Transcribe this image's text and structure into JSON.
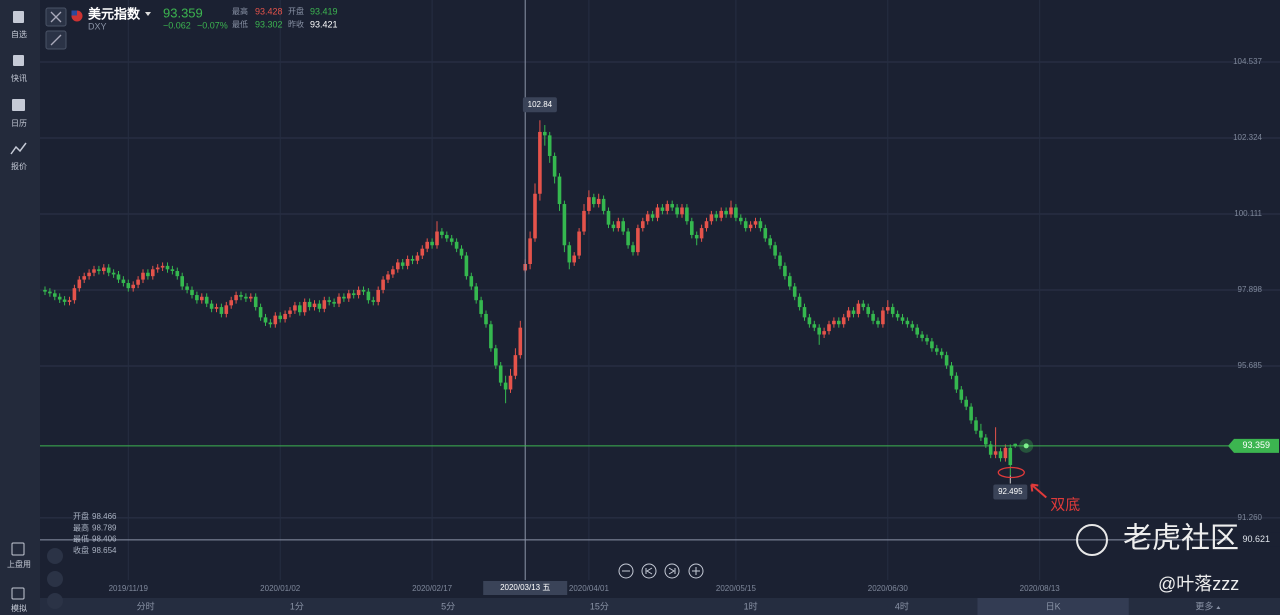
{
  "sidebar": {
    "items": [
      "自选",
      "快讯",
      "日历",
      "报价"
    ],
    "bottom": [
      "上盘用",
      "模拟"
    ]
  },
  "header": {
    "name": "美元指数",
    "code": "DXY",
    "price": "93.359",
    "change": "−0.062",
    "change_pct": "−0.07%",
    "stats": [
      {
        "label": "最高",
        "value": "93.428"
      },
      {
        "label": "开盘",
        "value": "93.419"
      },
      {
        "label": "最低",
        "value": "93.302"
      },
      {
        "label": "昨收",
        "value": "93.421"
      }
    ]
  },
  "chart_data": {
    "type": "candlestick",
    "up_color": "#e5534b",
    "down_color": "#35b84f",
    "grid": true,
    "xlim": [
      -1.02,
      252.04
    ],
    "ylim": [
      89.452,
      106.342
    ],
    "yticks": [
      104.537,
      102.324,
      100.111,
      97.898,
      95.685,
      {
        "value": 91.26,
        "label": "91.260"
      }
    ],
    "xticks": [
      {
        "value": 17,
        "label": "2019/11/19"
      },
      {
        "value": 48,
        "label": "2020/01/02"
      },
      {
        "value": 79,
        "label": "2020/02/17"
      },
      {
        "value": 111,
        "label": "2020/04/01"
      },
      {
        "value": 141,
        "label": "2020/05/15"
      },
      {
        "value": 172,
        "label": "2020/06/30"
      },
      {
        "value": 203,
        "label": "2020/08/13"
      }
    ],
    "last_price": 93.359,
    "last_color": "#3cb550",
    "crosshair": {
      "x": {
        "value": 98,
        "label": "2020/03/13 五"
      },
      "y": 90.621
    },
    "ohlc_box": [
      {
        "label": "开盘",
        "value": 98.466
      },
      {
        "label": "最高",
        "value": 98.789
      },
      {
        "label": "最低",
        "value": 98.406
      },
      {
        "label": "收盘",
        "value": 98.654
      }
    ],
    "max_label": {
      "index": 101,
      "value": 102.84
    },
    "min_label": {
      "index": 197,
      "value": 92.495
    },
    "annotation": "双底",
    "candles": [
      [
        97.9,
        98.0,
        97.75,
        97.85
      ],
      [
        97.85,
        97.95,
        97.7,
        97.8
      ],
      [
        97.8,
        97.9,
        97.6,
        97.7
      ],
      [
        97.7,
        97.8,
        97.52,
        97.62
      ],
      [
        97.62,
        97.72,
        97.45,
        97.55
      ],
      [
        97.55,
        97.7,
        97.45,
        97.6
      ],
      [
        97.6,
        98.05,
        97.5,
        97.95
      ],
      [
        97.95,
        98.3,
        97.85,
        98.2
      ],
      [
        98.2,
        98.4,
        98.1,
        98.3
      ],
      [
        98.3,
        98.5,
        98.2,
        98.4
      ],
      [
        98.4,
        98.6,
        98.3,
        98.5
      ],
      [
        98.5,
        98.6,
        98.35,
        98.45
      ],
      [
        98.45,
        98.65,
        98.35,
        98.55
      ],
      [
        98.55,
        98.65,
        98.3,
        98.4
      ],
      [
        98.4,
        98.5,
        98.25,
        98.35
      ],
      [
        98.35,
        98.45,
        98.1,
        98.2
      ],
      [
        98.2,
        98.3,
        98.0,
        98.1
      ],
      [
        98.1,
        98.2,
        97.85,
        97.95
      ],
      [
        97.95,
        98.15,
        97.85,
        98.05
      ],
      [
        98.05,
        98.3,
        97.95,
        98.2
      ],
      [
        98.2,
        98.5,
        98.1,
        98.4
      ],
      [
        98.4,
        98.5,
        98.2,
        98.3
      ],
      [
        98.3,
        98.6,
        98.2,
        98.5
      ],
      [
        98.5,
        98.65,
        98.4,
        98.55
      ],
      [
        98.55,
        98.7,
        98.45,
        98.6
      ],
      [
        98.6,
        98.7,
        98.4,
        98.5
      ],
      [
        98.5,
        98.6,
        98.35,
        98.45
      ],
      [
        98.45,
        98.55,
        98.2,
        98.3
      ],
      [
        98.3,
        98.4,
        97.9,
        98.0
      ],
      [
        98.0,
        98.1,
        97.8,
        97.9
      ],
      [
        97.9,
        98.0,
        97.65,
        97.75
      ],
      [
        97.75,
        97.85,
        97.5,
        97.6
      ],
      [
        97.6,
        97.8,
        97.5,
        97.7
      ],
      [
        97.7,
        97.8,
        97.4,
        97.5
      ],
      [
        97.5,
        97.6,
        97.25,
        97.35
      ],
      [
        97.35,
        97.5,
        97.25,
        97.4
      ],
      [
        97.4,
        97.5,
        97.1,
        97.2
      ],
      [
        97.2,
        97.55,
        97.1,
        97.45
      ],
      [
        97.45,
        97.7,
        97.35,
        97.6
      ],
      [
        97.6,
        97.85,
        97.5,
        97.75
      ],
      [
        97.75,
        97.85,
        97.6,
        97.7
      ],
      [
        97.7,
        97.8,
        97.55,
        97.65
      ],
      [
        97.65,
        97.8,
        97.55,
        97.7
      ],
      [
        97.7,
        97.8,
        97.3,
        97.4
      ],
      [
        97.4,
        97.5,
        97.0,
        97.1
      ],
      [
        97.1,
        97.2,
        96.85,
        96.95
      ],
      [
        96.95,
        97.05,
        96.8,
        96.9
      ],
      [
        96.9,
        97.25,
        96.8,
        97.15
      ],
      [
        97.15,
        97.25,
        96.95,
        97.05
      ],
      [
        97.05,
        97.3,
        96.95,
        97.2
      ],
      [
        97.2,
        97.4,
        97.1,
        97.3
      ],
      [
        97.3,
        97.55,
        97.2,
        97.45
      ],
      [
        97.45,
        97.55,
        97.15,
        97.25
      ],
      [
        97.25,
        97.65,
        97.15,
        97.55
      ],
      [
        97.55,
        97.65,
        97.3,
        97.4
      ],
      [
        97.4,
        97.6,
        97.3,
        97.5
      ],
      [
        97.5,
        97.6,
        97.25,
        97.35
      ],
      [
        97.35,
        97.7,
        97.25,
        97.6
      ],
      [
        97.6,
        97.7,
        97.45,
        97.55
      ],
      [
        97.55,
        97.65,
        97.4,
        97.5
      ],
      [
        97.5,
        97.8,
        97.4,
        97.7
      ],
      [
        97.7,
        97.8,
        97.55,
        97.65
      ],
      [
        97.65,
        97.9,
        97.55,
        97.8
      ],
      [
        97.8,
        97.9,
        97.65,
        97.75
      ],
      [
        97.75,
        98.0,
        97.65,
        97.9
      ],
      [
        97.9,
        98.0,
        97.75,
        97.85
      ],
      [
        97.85,
        97.95,
        97.5,
        97.6
      ],
      [
        97.6,
        97.7,
        97.45,
        97.55
      ],
      [
        97.55,
        98.0,
        97.45,
        97.9
      ],
      [
        97.9,
        98.3,
        97.8,
        98.2
      ],
      [
        98.2,
        98.45,
        98.1,
        98.35
      ],
      [
        98.35,
        98.6,
        98.25,
        98.5
      ],
      [
        98.5,
        98.8,
        98.4,
        98.7
      ],
      [
        98.7,
        98.8,
        98.5,
        98.6
      ],
      [
        98.6,
        98.9,
        98.5,
        98.8
      ],
      [
        98.8,
        98.9,
        98.65,
        98.75
      ],
      [
        98.75,
        99.0,
        98.65,
        98.9
      ],
      [
        98.9,
        99.2,
        98.8,
        99.1
      ],
      [
        99.1,
        99.4,
        99.0,
        99.3
      ],
      [
        99.3,
        99.4,
        99.1,
        99.2
      ],
      [
        99.2,
        99.9,
        99.1,
        99.6
      ],
      [
        99.6,
        99.7,
        99.4,
        99.5
      ],
      [
        99.5,
        99.6,
        99.3,
        99.4
      ],
      [
        99.4,
        99.5,
        99.2,
        99.3
      ],
      [
        99.3,
        99.4,
        99.0,
        99.1
      ],
      [
        99.1,
        99.2,
        98.8,
        98.9
      ],
      [
        98.9,
        99.0,
        98.2,
        98.3
      ],
      [
        98.3,
        98.4,
        97.9,
        98.0
      ],
      [
        98.0,
        98.1,
        97.5,
        97.6
      ],
      [
        97.6,
        97.7,
        97.1,
        97.2
      ],
      [
        97.2,
        97.3,
        96.8,
        96.9
      ],
      [
        96.9,
        97.0,
        96.1,
        96.2
      ],
      [
        96.2,
        96.3,
        95.6,
        95.7
      ],
      [
        95.7,
        95.8,
        95.1,
        95.2
      ],
      [
        95.2,
        95.4,
        94.6,
        95.0
      ],
      [
        95.0,
        95.6,
        94.9,
        95.4
      ],
      [
        95.4,
        96.2,
        95.3,
        96.0
      ],
      [
        96.0,
        97.0,
        95.9,
        96.8
      ],
      [
        98.466,
        98.789,
        98.406,
        98.654
      ],
      [
        98.654,
        99.6,
        98.5,
        99.4
      ],
      [
        99.4,
        101.0,
        99.3,
        100.7
      ],
      [
        100.7,
        102.84,
        100.5,
        102.5
      ],
      [
        102.5,
        102.7,
        102.1,
        102.4
      ],
      [
        102.4,
        102.5,
        101.6,
        101.8
      ],
      [
        101.8,
        101.9,
        101.0,
        101.2
      ],
      [
        101.2,
        101.3,
        100.2,
        100.4
      ],
      [
        100.4,
        100.5,
        99.0,
        99.2
      ],
      [
        99.2,
        99.3,
        98.5,
        98.7
      ],
      [
        98.7,
        99.0,
        98.6,
        98.9
      ],
      [
        98.9,
        99.7,
        98.8,
        99.6
      ],
      [
        99.6,
        100.4,
        99.5,
        100.2
      ],
      [
        100.2,
        100.8,
        100.1,
        100.6
      ],
      [
        100.6,
        100.7,
        100.3,
        100.4
      ],
      [
        100.4,
        100.7,
        100.3,
        100.55
      ],
      [
        100.55,
        100.65,
        100.1,
        100.2
      ],
      [
        100.2,
        100.3,
        99.7,
        99.8
      ],
      [
        99.8,
        99.9,
        99.6,
        99.7
      ],
      [
        99.7,
        100.0,
        99.6,
        99.9
      ],
      [
        99.9,
        100.0,
        99.5,
        99.6
      ],
      [
        99.6,
        99.7,
        99.1,
        99.2
      ],
      [
        99.2,
        99.3,
        98.9,
        99.0
      ],
      [
        99.0,
        99.8,
        98.9,
        99.7
      ],
      [
        99.7,
        100.0,
        99.6,
        99.9
      ],
      [
        99.9,
        100.2,
        99.8,
        100.1
      ],
      [
        100.1,
        100.2,
        99.9,
        100.0
      ],
      [
        100.0,
        100.4,
        99.9,
        100.3
      ],
      [
        100.3,
        100.4,
        100.1,
        100.2
      ],
      [
        100.2,
        100.5,
        100.1,
        100.4
      ],
      [
        100.4,
        100.5,
        100.2,
        100.3
      ],
      [
        100.3,
        100.4,
        100.0,
        100.1
      ],
      [
        100.1,
        100.4,
        100.0,
        100.3
      ],
      [
        100.3,
        100.4,
        99.8,
        99.9
      ],
      [
        99.9,
        100.0,
        99.4,
        99.5
      ],
      [
        99.5,
        99.6,
        99.2,
        99.4
      ],
      [
        99.4,
        99.8,
        99.3,
        99.7
      ],
      [
        99.7,
        100.0,
        99.6,
        99.9
      ],
      [
        99.9,
        100.2,
        99.8,
        100.1
      ],
      [
        100.1,
        100.2,
        99.9,
        100.0
      ],
      [
        100.0,
        100.3,
        99.9,
        100.2
      ],
      [
        100.2,
        100.3,
        100.0,
        100.1
      ],
      [
        100.1,
        100.5,
        100.0,
        100.3
      ],
      [
        100.3,
        100.4,
        99.9,
        100.0
      ],
      [
        100.0,
        100.1,
        99.8,
        99.9
      ],
      [
        99.9,
        100.0,
        99.6,
        99.7
      ],
      [
        99.7,
        99.9,
        99.6,
        99.8
      ],
      [
        99.8,
        100.0,
        99.7,
        99.9
      ],
      [
        99.9,
        100.0,
        99.6,
        99.7
      ],
      [
        99.7,
        99.8,
        99.3,
        99.4
      ],
      [
        99.4,
        99.5,
        99.1,
        99.2
      ],
      [
        99.2,
        99.3,
        98.8,
        98.9
      ],
      [
        98.9,
        99.0,
        98.5,
        98.6
      ],
      [
        98.6,
        98.7,
        98.2,
        98.3
      ],
      [
        98.3,
        98.4,
        97.9,
        98.0
      ],
      [
        98.0,
        98.1,
        97.6,
        97.7
      ],
      [
        97.7,
        97.8,
        97.3,
        97.4
      ],
      [
        97.4,
        97.5,
        97.0,
        97.1
      ],
      [
        97.1,
        97.2,
        96.8,
        96.9
      ],
      [
        96.9,
        97.0,
        96.7,
        96.8
      ],
      [
        96.8,
        96.9,
        96.3,
        96.6
      ],
      [
        96.6,
        96.8,
        96.5,
        96.7
      ],
      [
        96.7,
        97.0,
        96.6,
        96.9
      ],
      [
        96.9,
        97.1,
        96.8,
        97.0
      ],
      [
        97.0,
        97.1,
        96.8,
        96.9
      ],
      [
        96.9,
        97.2,
        96.8,
        97.1
      ],
      [
        97.1,
        97.4,
        97.0,
        97.3
      ],
      [
        97.3,
        97.4,
        97.1,
        97.2
      ],
      [
        97.2,
        97.6,
        97.1,
        97.5
      ],
      [
        97.5,
        97.6,
        97.3,
        97.4
      ],
      [
        97.4,
        97.5,
        97.1,
        97.2
      ],
      [
        97.2,
        97.3,
        96.9,
        97.0
      ],
      [
        97.0,
        97.1,
        96.8,
        96.9
      ],
      [
        96.9,
        97.4,
        96.8,
        97.3
      ],
      [
        97.3,
        97.6,
        97.2,
        97.4
      ],
      [
        97.4,
        97.5,
        97.1,
        97.2
      ],
      [
        97.2,
        97.3,
        97.0,
        97.1
      ],
      [
        97.1,
        97.2,
        96.9,
        97.0
      ],
      [
        97.0,
        97.1,
        96.8,
        96.9
      ],
      [
        96.9,
        97.0,
        96.7,
        96.8
      ],
      [
        96.8,
        96.9,
        96.5,
        96.6
      ],
      [
        96.6,
        96.7,
        96.4,
        96.5
      ],
      [
        96.5,
        96.6,
        96.3,
        96.4
      ],
      [
        96.4,
        96.5,
        96.1,
        96.2
      ],
      [
        96.2,
        96.3,
        96.0,
        96.1
      ],
      [
        96.1,
        96.2,
        95.9,
        96.0
      ],
      [
        96.0,
        96.1,
        95.6,
        95.7
      ],
      [
        95.7,
        95.8,
        95.3,
        95.4
      ],
      [
        95.4,
        95.5,
        94.9,
        95.0
      ],
      [
        95.0,
        95.1,
        94.6,
        94.7
      ],
      [
        94.7,
        94.8,
        94.4,
        94.5
      ],
      [
        94.5,
        94.6,
        94.0,
        94.1
      ],
      [
        94.1,
        94.2,
        93.7,
        93.8
      ],
      [
        93.8,
        94.0,
        93.5,
        93.6
      ],
      [
        93.6,
        93.7,
        93.3,
        93.4
      ],
      [
        93.4,
        93.5,
        93.0,
        93.1
      ],
      [
        93.1,
        93.9,
        93.0,
        93.2
      ],
      [
        93.2,
        93.3,
        92.9,
        93.0
      ],
      [
        93.0,
        93.4,
        92.9,
        93.3
      ],
      [
        93.3,
        93.4,
        92.495,
        92.8
      ],
      [
        93.419,
        93.428,
        93.302,
        93.359
      ]
    ]
  },
  "tabs": [
    "分时",
    "1分",
    "5分",
    "15分",
    "1时",
    "4时",
    "日K",
    "更多"
  ],
  "watermark": {
    "brand": "老虎社区",
    "user": "@叶落zzz"
  }
}
